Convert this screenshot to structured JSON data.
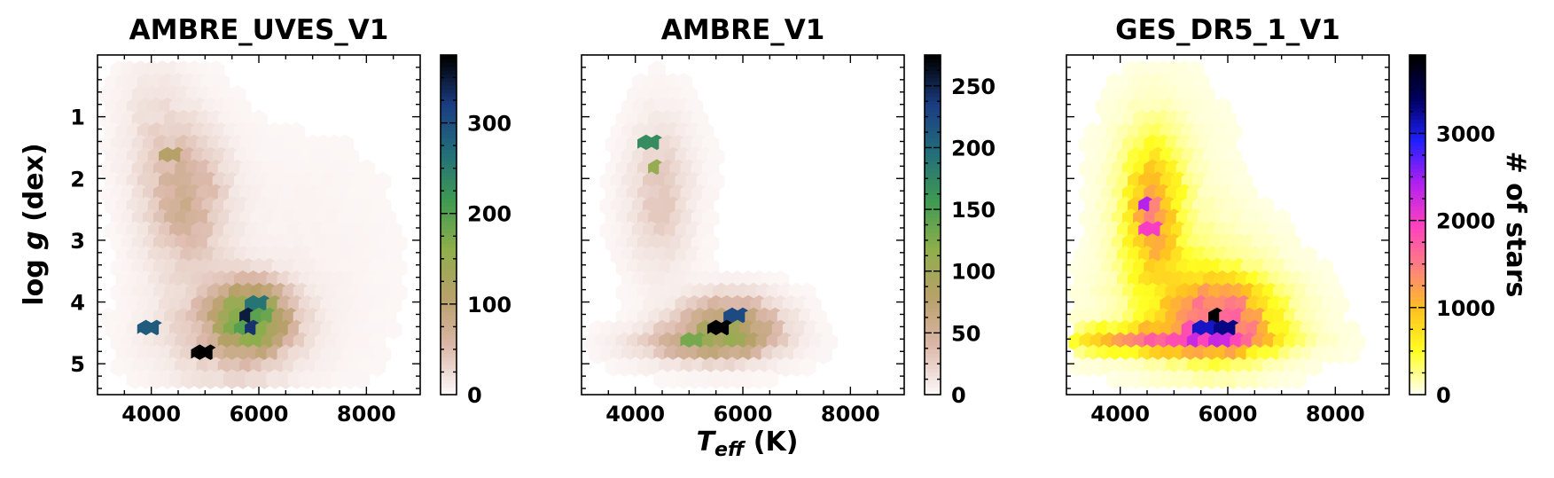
{
  "figure": {
    "xlabel_base": "T",
    "xlabel_sub": "eff",
    "xlabel_unit": " (K)",
    "ylabel_base": "log ",
    "ylabel_var": "g",
    "ylabel_unit": " (dex)",
    "colorbar_label": "# of stars"
  },
  "chart_data": [
    {
      "type": "heatmap",
      "title": "AMBRE_UVES_V1",
      "colormap": "gist_earth_r",
      "colormap_stops": [
        "#fdf8f8",
        "#dab7a8",
        "#b8a06a",
        "#8fae4c",
        "#3f9a52",
        "#236e7a",
        "#1b3d82",
        "#000000"
      ],
      "xlim": [
        3000,
        9000
      ],
      "ylim": [
        0,
        5.5
      ],
      "y_inverted": true,
      "xticks": [
        4000,
        6000,
        8000
      ],
      "yticks": [
        1,
        2,
        3,
        4,
        5
      ],
      "clim": [
        0,
        375
      ],
      "cbar_ticks": [
        0,
        100,
        200,
        300
      ],
      "clusters": [
        {
          "x": 4700,
          "y": 2.4,
          "sx": 500,
          "sy": 0.75,
          "v": 65
        },
        {
          "x": 5900,
          "y": 4.3,
          "sx": 450,
          "sy": 0.35,
          "v": 180
        },
        {
          "x": 5500,
          "y": 4.5,
          "sx": 850,
          "sy": 0.55,
          "v": 45
        },
        {
          "x": 4100,
          "y": 1.2,
          "sx": 450,
          "sy": 0.8,
          "v": 18
        },
        {
          "x": 6500,
          "y": 3.5,
          "sx": 1400,
          "sy": 1.5,
          "v": 5
        }
      ],
      "peaks": [
        {
          "x": 5800,
          "y": 4.2,
          "v": 350
        },
        {
          "x": 5900,
          "y": 4.4,
          "v": 330
        },
        {
          "x": 5000,
          "y": 4.9,
          "v": 375
        },
        {
          "x": 4400,
          "y": 1.6,
          "v": 110
        },
        {
          "x": 4000,
          "y": 4.4,
          "v": 290
        },
        {
          "x": 6000,
          "y": 4.0,
          "v": 260
        }
      ],
      "cutoff": 1.5
    },
    {
      "type": "heatmap",
      "title": "AMBRE_V1",
      "colormap": "gist_earth_r",
      "colormap_stops": [
        "#fdf8f8",
        "#dab7a8",
        "#b8a06a",
        "#8fae4c",
        "#3f9a52",
        "#236e7a",
        "#1b3d82",
        "#000000"
      ],
      "xlim": [
        3000,
        9000
      ],
      "ylim": [
        0,
        5.5
      ],
      "y_inverted": true,
      "xticks": [
        4000,
        6000,
        8000
      ],
      "yticks": [
        1,
        2,
        3,
        4,
        5
      ],
      "clim": [
        0,
        275
      ],
      "cbar_ticks": [
        0,
        50,
        100,
        150,
        200,
        250
      ],
      "clusters": [
        {
          "x": 4500,
          "y": 2.3,
          "sx": 400,
          "sy": 0.8,
          "v": 28
        },
        {
          "x": 5800,
          "y": 4.4,
          "sx": 600,
          "sy": 0.3,
          "v": 85
        },
        {
          "x": 5300,
          "y": 4.7,
          "sx": 800,
          "sy": 0.2,
          "v": 55
        }
      ],
      "peaks": [
        {
          "x": 5600,
          "y": 4.4,
          "v": 275
        },
        {
          "x": 5900,
          "y": 4.2,
          "v": 225
        },
        {
          "x": 4300,
          "y": 1.4,
          "v": 170
        },
        {
          "x": 4400,
          "y": 1.9,
          "v": 110
        },
        {
          "x": 5100,
          "y": 4.7,
          "v": 130
        }
      ],
      "cutoff": 1.0
    },
    {
      "type": "heatmap",
      "title": "GES_DR5_1_V1",
      "colormap": "gnuplot2_r",
      "colormap_stops": [
        "#ffffee",
        "#ffff22",
        "#ffc020",
        "#ff8080",
        "#ff40c0",
        "#b020f0",
        "#2020ff",
        "#000060",
        "#000000"
      ],
      "xlim": [
        3000,
        9000
      ],
      "ylim": [
        0,
        5.5
      ],
      "y_inverted": true,
      "xticks": [
        4000,
        6000,
        8000
      ],
      "yticks": [
        1,
        2,
        3,
        4,
        5
      ],
      "clim": [
        0,
        3900
      ],
      "cbar_ticks": [
        0,
        1000,
        2000,
        3000
      ],
      "cbar_label": "# of stars",
      "clusters": [
        {
          "x": 4650,
          "y": 2.6,
          "sx": 350,
          "sy": 0.75,
          "v": 1100
        },
        {
          "x": 5900,
          "y": 4.3,
          "sx": 650,
          "sy": 0.4,
          "v": 1500
        },
        {
          "x": 4900,
          "y": 4.65,
          "sx": 1200,
          "sy": 0.15,
          "v": 1300
        },
        {
          "x": 5500,
          "y": 3.7,
          "sx": 900,
          "sy": 0.7,
          "v": 260
        },
        {
          "x": 4800,
          "y": 2.0,
          "sx": 800,
          "sy": 1.1,
          "v": 120
        },
        {
          "x": 5500,
          "y": 4.3,
          "sx": 1500,
          "sy": 0.6,
          "v": 120
        }
      ],
      "peaks": [
        {
          "x": 5800,
          "y": 4.2,
          "v": 3900
        },
        {
          "x": 5600,
          "y": 4.4,
          "v": 3100
        },
        {
          "x": 4500,
          "y": 2.5,
          "v": 2400
        },
        {
          "x": 4600,
          "y": 2.8,
          "v": 2000
        },
        {
          "x": 6000,
          "y": 4.4,
          "v": 3300
        }
      ],
      "cutoff": 25
    }
  ]
}
